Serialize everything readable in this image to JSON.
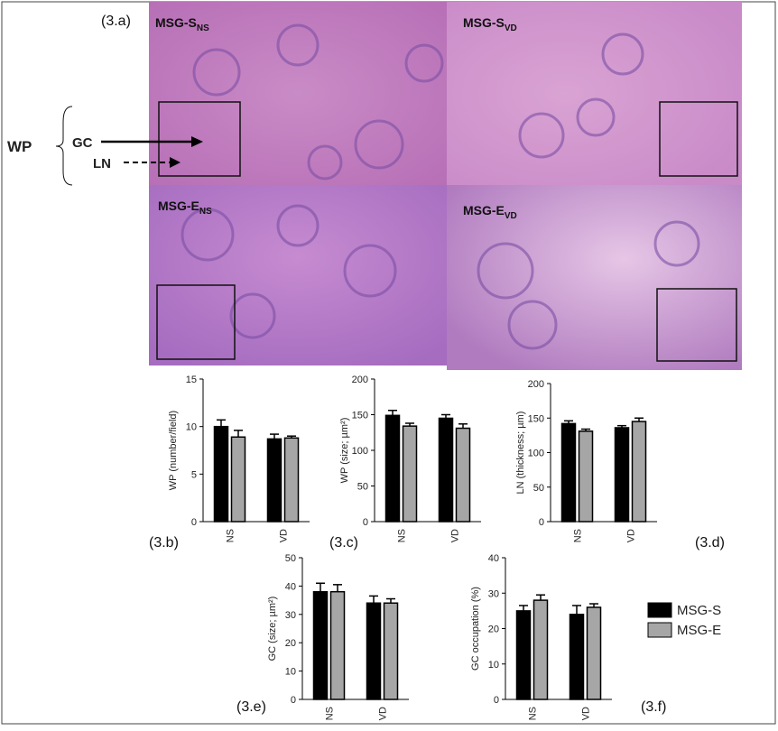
{
  "figure": {
    "panel_a": "(3.a)",
    "images": [
      {
        "label": "MSG-S",
        "sub": "NS"
      },
      {
        "label": "MSG-S",
        "sub": "VD"
      },
      {
        "label": "MSG-E",
        "sub": "NS"
      },
      {
        "label": "MSG-E",
        "sub": "VD"
      }
    ],
    "annotations": {
      "wp": "WP",
      "gc": "GC",
      "ln": "LN"
    }
  },
  "chart_data": [
    {
      "type": "bar",
      "panel": "(3.b)",
      "ylabel": "WP (number/field)",
      "categories": [
        "NS",
        "VD"
      ],
      "ylim": [
        0,
        15
      ],
      "yticks": [
        0,
        5,
        10,
        15
      ],
      "series": [
        {
          "name": "MSG-S",
          "color": "#000000",
          "values": [
            10.0,
            8.7
          ],
          "errors": [
            0.7,
            0.5
          ]
        },
        {
          "name": "MSG-E",
          "color": "#a6a6a6",
          "values": [
            8.9,
            8.8
          ],
          "errors": [
            0.7,
            0.2
          ]
        }
      ]
    },
    {
      "type": "bar",
      "panel": "(3.c)",
      "ylabel": "WP (size; µm²)",
      "categories": [
        "NS",
        "VD"
      ],
      "ylim": [
        0,
        200
      ],
      "yticks": [
        0,
        50,
        100,
        150,
        200
      ],
      "series": [
        {
          "name": "MSG-S",
          "color": "#000000",
          "values": [
            149,
            145
          ],
          "errors": [
            7,
            5
          ]
        },
        {
          "name": "MSG-E",
          "color": "#a6a6a6",
          "values": [
            134,
            131
          ],
          "errors": [
            4,
            6
          ]
        }
      ]
    },
    {
      "type": "bar",
      "panel": "(3.d)",
      "ylabel": "LN (thickness; µm)",
      "categories": [
        "NS",
        "VD"
      ],
      "ylim": [
        0,
        200
      ],
      "yticks": [
        0,
        50,
        100,
        150,
        200
      ],
      "series": [
        {
          "name": "MSG-S",
          "color": "#000000",
          "values": [
            142,
            136
          ],
          "errors": [
            4,
            3
          ]
        },
        {
          "name": "MSG-E",
          "color": "#a6a6a6",
          "values": [
            131,
            145
          ],
          "errors": [
            3,
            5
          ]
        }
      ]
    },
    {
      "type": "bar",
      "panel": "(3.e)",
      "ylabel": "GC (size; µm²)",
      "categories": [
        "NS",
        "VD"
      ],
      "ylim": [
        0,
        50
      ],
      "yticks": [
        0,
        10,
        20,
        30,
        40,
        50
      ],
      "series": [
        {
          "name": "MSG-S",
          "color": "#000000",
          "values": [
            38,
            34
          ],
          "errors": [
            3,
            2.5
          ]
        },
        {
          "name": "MSG-E",
          "color": "#a6a6a6",
          "values": [
            38,
            34
          ],
          "errors": [
            2.5,
            1.5
          ]
        }
      ]
    },
    {
      "type": "bar",
      "panel": "(3.f)",
      "ylabel": "GC occupation (%)",
      "categories": [
        "NS",
        "VD"
      ],
      "ylim": [
        0,
        40
      ],
      "yticks": [
        0,
        10,
        20,
        30,
        40
      ],
      "series": [
        {
          "name": "MSG-S",
          "color": "#000000",
          "values": [
            25,
            24
          ],
          "errors": [
            1.5,
            2.5
          ]
        },
        {
          "name": "MSG-E",
          "color": "#a6a6a6",
          "values": [
            28,
            26
          ],
          "errors": [
            1.5,
            1
          ]
        }
      ]
    }
  ]
}
